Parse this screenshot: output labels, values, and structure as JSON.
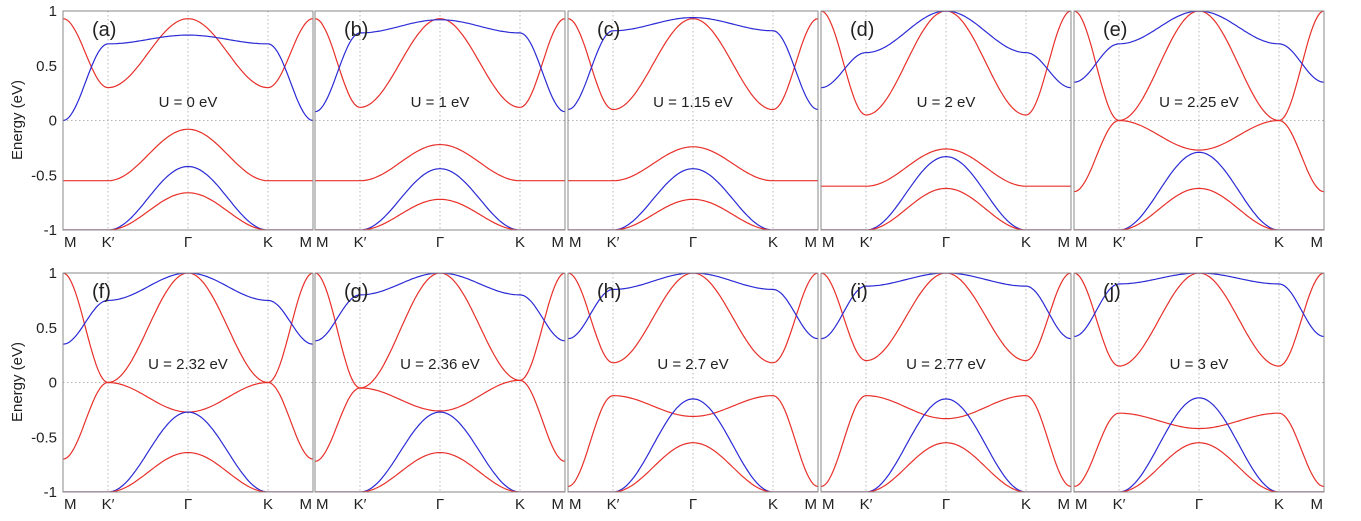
{
  "figure": {
    "ylabel": "Energy (eV)",
    "y_ticks": [
      "1",
      "0.5",
      "0",
      "-0.5",
      "-1"
    ],
    "x_ticks": [
      "M",
      "K′",
      "Γ",
      "K",
      "M"
    ]
  },
  "colors": {
    "band_red": "#e8302a",
    "band_blue": "#2b2bd6",
    "grid": "#9a9a9a"
  },
  "chart_data": [
    {
      "type": "line",
      "panel": "(a)",
      "title": "U = 0 eV",
      "ylabel": "Energy (eV)",
      "ylim": [
        -1,
        1
      ],
      "x": [
        "M",
        "K′",
        "Γ",
        "K",
        "M"
      ],
      "series": [
        {
          "color": "red",
          "values": [
            0.93,
            0.3,
            0.93,
            0.3,
            0.93
          ]
        },
        {
          "color": "blue",
          "values": [
            0.0,
            0.7,
            0.78,
            0.7,
            0.0
          ]
        },
        {
          "color": "red",
          "values": [
            -0.55,
            -0.55,
            -0.08,
            -0.55,
            -0.55
          ]
        },
        {
          "color": "blue",
          "values": [
            -1.0,
            -1.0,
            -0.42,
            -1.0,
            -1.0
          ]
        },
        {
          "color": "red",
          "values": [
            -1.0,
            -1.0,
            -0.66,
            -1.0,
            -1.0
          ]
        }
      ]
    },
    {
      "type": "line",
      "panel": "(b)",
      "title": "U = 1 eV",
      "ylabel": "Energy (eV)",
      "ylim": [
        -1,
        1
      ],
      "x": [
        "M",
        "K′",
        "Γ",
        "K",
        "M"
      ],
      "series": [
        {
          "color": "red",
          "values": [
            0.93,
            0.12,
            0.93,
            0.12,
            0.93
          ]
        },
        {
          "color": "blue",
          "values": [
            0.08,
            0.8,
            0.92,
            0.8,
            0.08
          ]
        },
        {
          "color": "red",
          "values": [
            -0.55,
            -0.55,
            -0.22,
            -0.55,
            -0.55
          ]
        },
        {
          "color": "blue",
          "values": [
            -1.0,
            -1.0,
            -0.44,
            -1.0,
            -1.0
          ]
        },
        {
          "color": "red",
          "values": [
            -1.0,
            -1.0,
            -0.72,
            -1.0,
            -1.0
          ]
        }
      ]
    },
    {
      "type": "line",
      "panel": "(c)",
      "title": "U = 1.15 eV",
      "ylabel": "Energy (eV)",
      "ylim": [
        -1,
        1
      ],
      "x": [
        "M",
        "K′",
        "Γ",
        "K",
        "M"
      ],
      "series": [
        {
          "color": "red",
          "values": [
            0.93,
            0.1,
            0.93,
            0.1,
            0.93
          ]
        },
        {
          "color": "blue",
          "values": [
            0.1,
            0.82,
            0.94,
            0.82,
            0.1
          ]
        },
        {
          "color": "red",
          "values": [
            -0.55,
            -0.55,
            -0.24,
            -0.55,
            -0.55
          ]
        },
        {
          "color": "blue",
          "values": [
            -1.0,
            -1.0,
            -0.44,
            -1.0,
            -1.0
          ]
        },
        {
          "color": "red",
          "values": [
            -1.0,
            -1.0,
            -0.72,
            -1.0,
            -1.0
          ]
        }
      ]
    },
    {
      "type": "line",
      "panel": "(d)",
      "title": "U = 2 eV",
      "ylabel": "Energy (eV)",
      "ylim": [
        -1,
        1
      ],
      "x": [
        "M",
        "K′",
        "Γ",
        "K",
        "M"
      ],
      "series": [
        {
          "color": "red",
          "values": [
            1.0,
            0.05,
            1.0,
            0.05,
            1.0
          ]
        },
        {
          "color": "blue",
          "values": [
            0.3,
            0.62,
            1.0,
            0.62,
            0.3
          ]
        },
        {
          "color": "red",
          "values": [
            -0.6,
            -0.6,
            -0.26,
            -0.6,
            -0.6
          ]
        },
        {
          "color": "blue",
          "values": [
            -1.0,
            -1.0,
            -0.33,
            -1.0,
            -1.0
          ]
        },
        {
          "color": "red",
          "values": [
            -1.0,
            -1.0,
            -0.62,
            -1.0,
            -1.0
          ]
        }
      ]
    },
    {
      "type": "line",
      "panel": "(e)",
      "title": "U = 2.25 eV",
      "ylabel": "Energy (eV)",
      "ylim": [
        -1,
        1
      ],
      "x": [
        "M",
        "K′",
        "Γ",
        "K",
        "M"
      ],
      "series": [
        {
          "color": "red",
          "values": [
            1.0,
            0.0,
            1.0,
            0.0,
            1.0
          ]
        },
        {
          "color": "blue",
          "values": [
            0.35,
            0.7,
            1.0,
            0.7,
            0.35
          ]
        },
        {
          "color": "red",
          "values": [
            -0.65,
            0.0,
            -0.27,
            0.0,
            -0.65
          ]
        },
        {
          "color": "blue",
          "values": [
            -1.0,
            -1.0,
            -0.29,
            -1.0,
            -1.0
          ]
        },
        {
          "color": "red",
          "values": [
            -1.0,
            -1.0,
            -0.62,
            -1.0,
            -1.0
          ]
        }
      ]
    },
    {
      "type": "line",
      "panel": "(f)",
      "title": "U = 2.32 eV",
      "ylabel": "Energy (eV)",
      "ylim": [
        -1,
        1
      ],
      "x": [
        "M",
        "K′",
        "Γ",
        "K",
        "M"
      ],
      "series": [
        {
          "color": "red",
          "values": [
            1.0,
            0.0,
            1.0,
            0.0,
            1.0
          ]
        },
        {
          "color": "blue",
          "values": [
            0.35,
            0.75,
            1.0,
            0.75,
            0.35
          ]
        },
        {
          "color": "red",
          "values": [
            -0.7,
            0.0,
            -0.27,
            0.0,
            -0.7
          ]
        },
        {
          "color": "blue",
          "values": [
            -1.0,
            -1.0,
            -0.27,
            -1.0,
            -1.0
          ]
        },
        {
          "color": "red",
          "values": [
            -1.0,
            -1.0,
            -0.64,
            -1.0,
            -1.0
          ]
        }
      ]
    },
    {
      "type": "line",
      "panel": "(g)",
      "title": "U = 2.36 eV",
      "ylabel": "Energy (eV)",
      "ylim": [
        -1,
        1
      ],
      "x": [
        "M",
        "K′",
        "Γ",
        "K",
        "M"
      ],
      "series": [
        {
          "color": "red",
          "values": [
            1.0,
            -0.05,
            1.0,
            0.02,
            1.0
          ]
        },
        {
          "color": "blue",
          "values": [
            0.38,
            0.8,
            1.0,
            0.8,
            0.38
          ]
        },
        {
          "color": "red",
          "values": [
            -0.72,
            -0.05,
            -0.26,
            0.02,
            -0.72
          ]
        },
        {
          "color": "blue",
          "values": [
            -1.0,
            -1.0,
            -0.27,
            -1.0,
            -1.0
          ]
        },
        {
          "color": "red",
          "values": [
            -1.0,
            -1.0,
            -0.64,
            -1.0,
            -1.0
          ]
        }
      ]
    },
    {
      "type": "line",
      "panel": "(h)",
      "title": "U = 2.7 eV",
      "ylabel": "Energy (eV)",
      "ylim": [
        -1,
        1
      ],
      "x": [
        "M",
        "K′",
        "Γ",
        "K",
        "M"
      ],
      "series": [
        {
          "color": "red",
          "values": [
            1.0,
            0.18,
            1.0,
            0.18,
            1.0
          ]
        },
        {
          "color": "blue",
          "values": [
            0.4,
            0.85,
            1.0,
            0.85,
            0.4
          ]
        },
        {
          "color": "red",
          "values": [
            -0.95,
            -0.12,
            -0.31,
            -0.12,
            -0.95
          ]
        },
        {
          "color": "blue",
          "values": [
            -1.0,
            -1.0,
            -0.15,
            -1.0,
            -1.0
          ]
        },
        {
          "color": "red",
          "values": [
            -1.0,
            -1.0,
            -0.55,
            -1.0,
            -1.0
          ]
        }
      ]
    },
    {
      "type": "line",
      "panel": "(i)",
      "title": "U = 2.77 eV",
      "ylabel": "Energy (eV)",
      "ylim": [
        -1,
        1
      ],
      "x": [
        "M",
        "K′",
        "Γ",
        "K",
        "M"
      ],
      "series": [
        {
          "color": "red",
          "values": [
            1.0,
            0.2,
            1.0,
            0.2,
            1.0
          ]
        },
        {
          "color": "blue",
          "values": [
            0.4,
            0.88,
            1.0,
            0.88,
            0.4
          ]
        },
        {
          "color": "red",
          "values": [
            -0.95,
            -0.12,
            -0.33,
            -0.12,
            -0.95
          ]
        },
        {
          "color": "blue",
          "values": [
            -1.0,
            -1.0,
            -0.15,
            -1.0,
            -1.0
          ]
        },
        {
          "color": "red",
          "values": [
            -1.0,
            -1.0,
            -0.55,
            -1.0,
            -1.0
          ]
        }
      ]
    },
    {
      "type": "line",
      "panel": "(j)",
      "title": "U = 3 eV",
      "ylabel": "Energy (eV)",
      "ylim": [
        -1,
        1
      ],
      "x": [
        "M",
        "K′",
        "Γ",
        "K",
        "M"
      ],
      "series": [
        {
          "color": "red",
          "values": [
            1.0,
            0.15,
            1.0,
            0.15,
            1.0
          ]
        },
        {
          "color": "blue",
          "values": [
            0.42,
            0.9,
            1.0,
            0.9,
            0.42
          ]
        },
        {
          "color": "red",
          "values": [
            -0.95,
            -0.28,
            -0.42,
            -0.28,
            -0.95
          ]
        },
        {
          "color": "blue",
          "values": [
            -1.0,
            -1.0,
            -0.14,
            -1.0,
            -1.0
          ]
        },
        {
          "color": "red",
          "values": [
            -1.0,
            -1.0,
            -0.55,
            -1.0,
            -1.0
          ]
        }
      ]
    }
  ]
}
